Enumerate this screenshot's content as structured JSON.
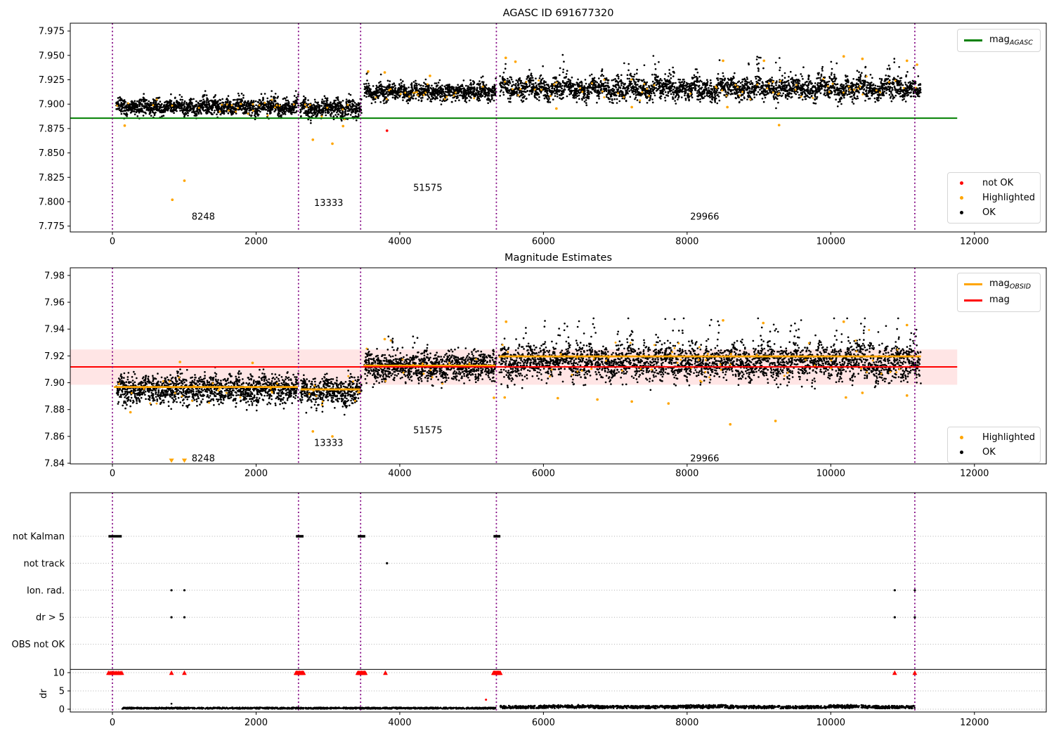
{
  "figure": {
    "background": "#ffffff"
  },
  "colors": {
    "ok": "#000000",
    "highlighted": "#ffa500",
    "not_ok": "#ff0000",
    "agasc_line": "#008000",
    "mag_line": "#ff0000",
    "obsid_line": "#ffa500",
    "vline": "#800080",
    "band": "rgba(255,0,0,0.10)",
    "grid": "#b0b0b0"
  },
  "chart_data": [
    {
      "type": "scatter",
      "title": "AGASC ID 691677320",
      "xlim": [
        -587,
        13000
      ],
      "ylim": [
        7.769,
        7.983
      ],
      "xticks": [
        0,
        2000,
        4000,
        6000,
        8000,
        10000,
        12000
      ],
      "yticks": [
        7.775,
        7.8,
        7.825,
        7.85,
        7.875,
        7.9,
        7.925,
        7.95,
        7.975
      ],
      "ytick_decimals": 3,
      "legend_line": {
        "prefix": "mag",
        "sub": "AGASC",
        "color": "#008000"
      },
      "legend_points": {
        "items": [
          {
            "label": "not OK",
            "color": "#ff0000"
          },
          {
            "label": "Highlighted",
            "color": "#ffa500"
          },
          {
            "label": "OK",
            "color": "#000000"
          }
        ]
      },
      "agasc_line": {
        "y": 7.8856,
        "x0": -587,
        "x1": 11760,
        "color": "#008000"
      },
      "vlines": {
        "x": [
          0,
          2590,
          3455,
          5345,
          11170
        ],
        "color": "#800080"
      },
      "annotations": [
        {
          "text": "8248",
          "x": 1265,
          "y": 7.785
        },
        {
          "text": "13333",
          "x": 3010,
          "y": 7.799
        },
        {
          "text": "51575",
          "x": 4390,
          "y": 7.8145
        },
        {
          "text": "29966",
          "x": 8245,
          "y": 7.785
        }
      ],
      "series": {
        "ok_color": "#000000",
        "highlight_color": "#ffa500",
        "not_ok_color": "#ff0000",
        "highlight_frac": 0.02,
        "segments": [
          {
            "obsid": 8248,
            "x0": 60,
            "x1": 2580,
            "mean": 7.8972,
            "std": 0.0042,
            "ymin": 7.8845,
            "ymax": 7.9135,
            "n": 1440,
            "wobble": 0.0022,
            "spike_frac": 0.05,
            "spike_amp": 0.007
          },
          {
            "obsid": 13333,
            "x0": 2620,
            "x1": 3460,
            "mean": 7.8952,
            "std": 0.0046,
            "ymin": 7.879,
            "ymax": 7.9125,
            "n": 504,
            "wobble": 0.002,
            "spike_frac": 0.0,
            "spike_amp": 0
          },
          {
            "obsid": 51575,
            "x0": 3510,
            "x1": 5340,
            "mean": 7.9125,
            "std": 0.0042,
            "ymin": 7.8975,
            "ymax": 7.9345,
            "n": 1080,
            "wobble": 0.002,
            "spike_frac": 0.08,
            "spike_amp": 0.009
          },
          {
            "obsid": 29966,
            "x0": 5400,
            "x1": 11245,
            "mean": 7.9158,
            "std": 0.0052,
            "ymin": 7.894,
            "ymax": 7.9505,
            "n": 3120,
            "wobble": 0.0035,
            "spike_frac": 0.22,
            "spike_amp": 0.013
          }
        ],
        "highlighted_outliers": [
          [
            833,
            7.802
          ],
          [
            1002,
            7.8215
          ],
          [
            170,
            7.878
          ],
          [
            2790,
            7.8635
          ],
          [
            3062,
            7.8595
          ],
          [
            3210,
            7.8775
          ],
          [
            3560,
            7.9335
          ],
          [
            3790,
            7.9325
          ],
          [
            4420,
            7.929
          ],
          [
            5475,
            7.9475
          ],
          [
            5610,
            7.9435
          ],
          [
            6180,
            7.8955
          ],
          [
            7230,
            7.897
          ],
          [
            8560,
            7.897
          ],
          [
            8500,
            7.9445
          ],
          [
            9070,
            7.9445
          ],
          [
            9280,
            7.8785
          ],
          [
            10180,
            7.949
          ],
          [
            10440,
            7.9465
          ],
          [
            11060,
            7.9445
          ],
          [
            11200,
            7.9405
          ]
        ],
        "not_ok_points": [
          [
            3822,
            7.8728
          ]
        ]
      }
    },
    {
      "type": "scatter",
      "title": "Magnitude Estimates",
      "xlim": [
        -587,
        13000
      ],
      "ylim": [
        7.8395,
        7.9857
      ],
      "xticks": [
        0,
        2000,
        4000,
        6000,
        8000,
        10000,
        12000
      ],
      "yticks": [
        7.84,
        7.86,
        7.88,
        7.9,
        7.92,
        7.94,
        7.96,
        7.98
      ],
      "ytick_decimals": 2,
      "legend_lines": {
        "items": [
          {
            "prefix": "mag",
            "sub": "OBSID",
            "color": "#ffa500"
          },
          {
            "prefix": "mag",
            "sub": "",
            "color": "#ff0000"
          }
        ]
      },
      "legend_points": {
        "items": [
          {
            "label": "Highlighted",
            "color": "#ffa500"
          },
          {
            "label": "OK",
            "color": "#000000"
          }
        ]
      },
      "mag_line": {
        "y": 7.9118,
        "x0": -587,
        "x1": 11760,
        "color": "#ff0000"
      },
      "band": {
        "ylo": 7.8985,
        "yhi": 7.9248,
        "x0": -587,
        "x1": 11760,
        "color": "rgba(255,0,0,0.10)"
      },
      "obsid_segments": [
        {
          "obsid": 8248,
          "x0": 20,
          "x1": 2580,
          "y": 7.8968
        },
        {
          "obsid": 13333,
          "x0": 2620,
          "x1": 3450,
          "y": 7.895
        },
        {
          "obsid": 51575,
          "x0": 3500,
          "x1": 5335,
          "y": 7.9127
        },
        {
          "obsid": 29966,
          "x0": 5390,
          "x1": 11255,
          "y": 7.9196
        }
      ],
      "vlines": {
        "x": [
          0,
          2590,
          3455,
          5345,
          11170
        ],
        "color": "#800080"
      },
      "annotations": [
        {
          "text": "8248",
          "x": 1265,
          "y": 7.8437
        },
        {
          "text": "13333",
          "x": 3010,
          "y": 7.8552
        },
        {
          "text": "51575",
          "x": 4390,
          "y": 7.8646
        },
        {
          "text": "29966",
          "x": 8245,
          "y": 7.8437
        }
      ],
      "series": {
        "ok_color": "#000000",
        "highlight_color": "#ffa500",
        "highlight_frac": 0.02,
        "segments": [
          {
            "obsid": 8248,
            "x0": 60,
            "x1": 2580,
            "mean": 7.895,
            "std": 0.0052,
            "ymin": 7.8775,
            "ymax": 7.9165,
            "n": 1440,
            "wobble": 0.0022,
            "spike_frac": 0.05,
            "spike_amp": 0.007
          },
          {
            "obsid": 13333,
            "x0": 2620,
            "x1": 3460,
            "mean": 7.8936,
            "std": 0.0052,
            "ymin": 7.876,
            "ymax": 7.9135,
            "n": 504,
            "wobble": 0.002,
            "spike_frac": 0.0,
            "spike_amp": 0
          },
          {
            "obsid": 51575,
            "x0": 3510,
            "x1": 5340,
            "mean": 7.912,
            "std": 0.005,
            "ymin": 7.895,
            "ymax": 7.9345,
            "n": 1080,
            "wobble": 0.002,
            "spike_frac": 0.1,
            "spike_amp": 0.009
          },
          {
            "obsid": 29966,
            "x0": 5390,
            "x1": 11245,
            "mean": 7.915,
            "std": 0.0062,
            "ymin": 7.8925,
            "ymax": 7.948,
            "n": 3120,
            "wobble": 0.003,
            "spike_frac": 0.25,
            "spike_amp": 0.014
          }
        ],
        "highlighted_outliers": [
          [
            250,
            7.878
          ],
          [
            2790,
            7.8637
          ],
          [
            3062,
            7.86
          ],
          [
            940,
            7.9155
          ],
          [
            1950,
            7.9148
          ],
          [
            5310,
            7.8888
          ],
          [
            5460,
            7.889
          ],
          [
            6200,
            7.8885
          ],
          [
            6750,
            7.8875
          ],
          [
            7230,
            7.886
          ],
          [
            7740,
            7.8845
          ],
          [
            8600,
            7.869
          ],
          [
            9230,
            7.8715
          ],
          [
            10210,
            7.889
          ],
          [
            10440,
            7.8925
          ],
          [
            11060,
            7.8905
          ],
          [
            3790,
            7.9325
          ],
          [
            5480,
            7.9455
          ],
          [
            8500,
            7.9465
          ],
          [
            9060,
            7.9445
          ],
          [
            10180,
            7.9455
          ],
          [
            11060,
            7.943
          ]
        ],
        "clip_markers_low": [
          [
            822,
            7.8395
          ],
          [
            1002,
            7.8395
          ]
        ]
      }
    },
    {
      "type": "flags",
      "categories": [
        "not Kalman",
        "not track",
        "Ion. rad.",
        "dr > 5",
        "OBS not OK"
      ],
      "ylabel": "dr",
      "dr_ticks": [
        10,
        5,
        0
      ],
      "xticks": [
        0,
        2000,
        4000,
        6000,
        8000,
        10000,
        12000
      ],
      "vlines": {
        "x": [
          0,
          2590,
          3455,
          5345,
          11170
        ],
        "color": "#800080"
      },
      "separator_dr": 10.9,
      "flags": {
        "not_kalman_clusters": [
          [
            -55,
            130
          ],
          [
            2555,
            2660
          ],
          [
            3415,
            3520
          ],
          [
            5305,
            5400
          ]
        ],
        "not_track_points": [
          3822
        ],
        "ion_rad_points": [
          822,
          1002,
          10890,
          11170
        ],
        "dr_gt5_points": [
          822,
          1002,
          10890,
          11170
        ],
        "obs_not_ok_points": []
      },
      "dr_series": {
        "clipped_at": 10,
        "clip_color": "#ff0000",
        "clip_clusters": [
          [
            -55,
            130
          ],
          [
            2555,
            2660
          ],
          [
            3415,
            3520
          ],
          [
            5305,
            5400
          ]
        ],
        "clip_points": [
          822,
          1002,
          3800,
          10890,
          11170
        ],
        "red_points": [
          [
            5200,
            2.6
          ]
        ],
        "black_segments": [
          {
            "x0": 130,
            "x1": 5340,
            "base": 0.28,
            "spread": 0.35,
            "n": 1300
          },
          {
            "x0": 5400,
            "x1": 11170,
            "base": 0.5,
            "spread": 0.75,
            "n": 1450
          }
        ],
        "black_points": [
          [
            822,
            1.5
          ]
        ]
      }
    }
  ]
}
